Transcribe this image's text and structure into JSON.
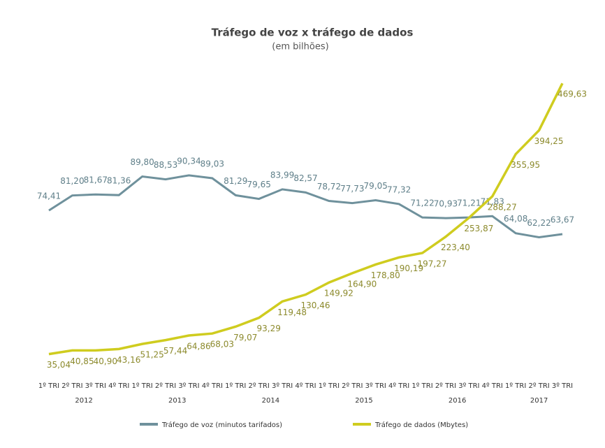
{
  "chart_data": {
    "type": "line",
    "title": "Tráfego de voz x tráfego de dados",
    "subtitle": "(em bilhões)",
    "categories": [
      "1º TRI",
      "2º TRI",
      "3º TRI",
      "4º TRI",
      "1º TRI",
      "2º TRI",
      "3º TRI",
      "4º TRI",
      "1º TRI",
      "2º TRI",
      "3º TRI",
      "4º TRI",
      "1º TRI",
      "2º TRI",
      "3º TRI",
      "4º TRI",
      "1º TRI",
      "2º TRI",
      "3º TRI",
      "4º TRI",
      "1º TRI",
      "2º TRI",
      "3º TRI"
    ],
    "year_labels": [
      "2012",
      "2013",
      "2014",
      "2015",
      "2016",
      "2017"
    ],
    "ylim": [
      5,
      135
    ],
    "y2lim": [
      20,
      480
    ],
    "series": [
      {
        "name": "Tráfego de voz (minutos tarifados)",
        "color": "#6f919c",
        "values": [
          74.41,
          81.2,
          81.67,
          81.36,
          89.8,
          88.53,
          90.34,
          89.03,
          81.29,
          79.65,
          83.99,
          82.57,
          78.72,
          77.73,
          79.05,
          77.32,
          71.22,
          70.93,
          71.21,
          71.83,
          64.08,
          62.22,
          63.67
        ],
        "value_labels": [
          "74,41",
          "81,20",
          "81,67",
          "81,36",
          "89,80",
          "88,53",
          "90,34",
          "89,03",
          "81,29",
          "79,65",
          "83,99",
          "82,57",
          "78,72",
          "77,73",
          "79,05",
          "77,32",
          "71,22",
          "70,93",
          "71,21",
          "71,83",
          "64,08",
          "62,22",
          "63,67"
        ]
      },
      {
        "name": "Tráfego de dados (Mbytes)",
        "color": "#cfcc1f",
        "axis": "y2",
        "values": [
          35.04,
          40.85,
          40.9,
          43.16,
          51.25,
          57.44,
          64.86,
          68.03,
          79.07,
          93.29,
          119.48,
          130.46,
          149.92,
          164.9,
          178.8,
          190.19,
          197.27,
          223.4,
          253.87,
          288.27,
          355.95,
          394.25,
          469.63
        ],
        "value_labels": [
          "35,04",
          "40,85",
          "40,90",
          "43,16",
          "51,25",
          "57,44",
          "64,86",
          "68,03",
          "79,07",
          "93,29",
          "119,48",
          "130,46",
          "149,92",
          "164,90",
          "178,80",
          "190,19",
          "197,27",
          "223,40",
          "253,87",
          "288,27",
          "355,95",
          "394,25",
          "469,63"
        ]
      }
    ]
  }
}
